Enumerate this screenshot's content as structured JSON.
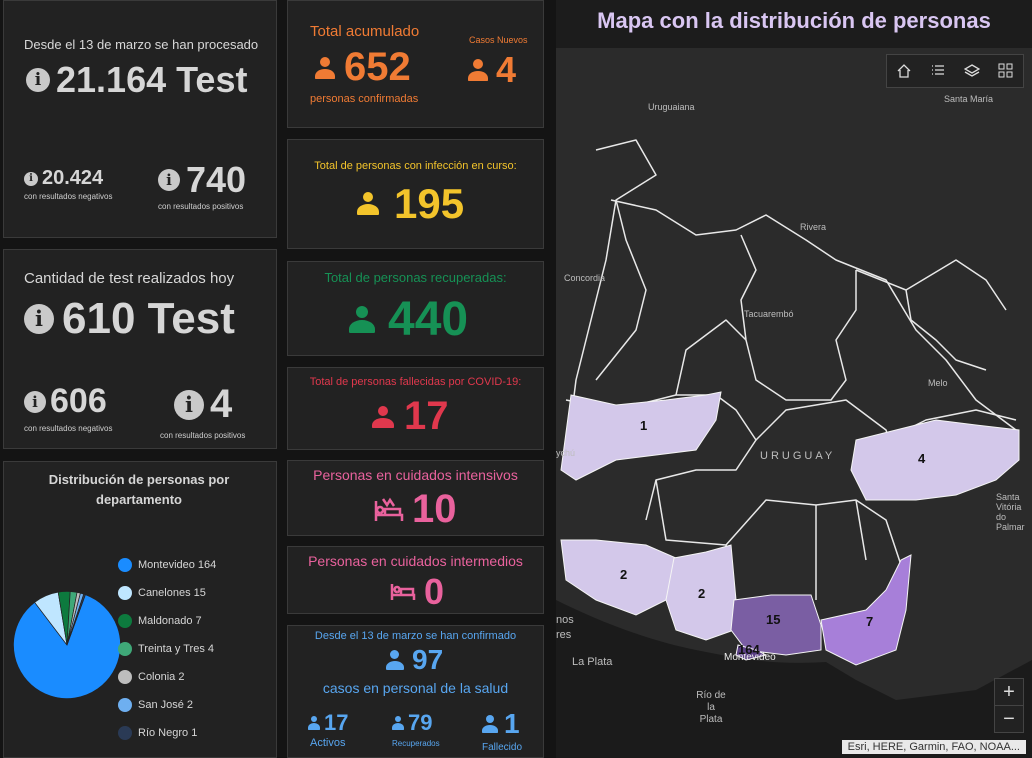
{
  "test_total": {
    "subtitle": "Desde el 13 de marzo se han procesado",
    "value": "21.164 Test",
    "negatives_value": "20.424",
    "negatives_label": "con resultados negativos",
    "positives_value": "740",
    "positives_label": "con resultados positivos"
  },
  "test_today": {
    "subtitle": "Cantidad de test realizados hoy",
    "value": "610 Test",
    "negatives_value": "606",
    "negatives_label": "con resultados negativos",
    "positives_value": "4",
    "positives_label": "con resultados positivos"
  },
  "confirmed": {
    "title": "Total acumulado",
    "value": "652",
    "caption": "personas confirmadas",
    "new_title": "Casos Nuevos",
    "new_value": "4",
    "color": "#f07b34"
  },
  "active": {
    "title": "Total de personas con infección en curso:",
    "value": "195",
    "color": "#f3c42b"
  },
  "recovered": {
    "title": "Total de personas recuperadas:",
    "value": "440",
    "color": "#169155"
  },
  "deceased": {
    "title": "Total de personas fallecidas por COVID-19:",
    "value": "17",
    "color": "#e0384d"
  },
  "icu": {
    "title": "Personas en cuidados intensivos",
    "value": "10",
    "color": "#e9629d"
  },
  "intermediate": {
    "title": "Personas en cuidados intermedios",
    "value": "0",
    "color": "#e9629d"
  },
  "health_staff": {
    "title": "Desde el 13 de marzo se han confirmado",
    "value": "97",
    "caption": "casos en personal de la salud",
    "active_value": "17",
    "active_label": "Activos",
    "recovered_value": "79",
    "recovered_label": "Recuperados",
    "deceased_value": "1",
    "deceased_label": "Fallecido",
    "color": "#58a6f0"
  },
  "chart_data": {
    "type": "pie",
    "title": "Distribución de personas por departamento",
    "categories": [
      "Montevideo",
      "Canelones",
      "Maldonado",
      "Treinta y Tres",
      "Colonia",
      "San José",
      "Río Negro"
    ],
    "values": [
      164,
      15,
      7,
      4,
      2,
      2,
      1
    ],
    "colors": [
      "#1a8cff",
      "#bfe6ff",
      "#0d7a3e",
      "#3fa878",
      "#bdbdbd",
      "#6eaff0",
      "#2a3a55"
    ],
    "legend_position": "right"
  },
  "map": {
    "title": "Mapa con la distribución de personas",
    "places": [
      "Uruguaiana",
      "Santa María",
      "Rivera",
      "Concordia",
      "Tacuarembó",
      "Melo",
      "URUGUAY",
      "La Plata",
      "Montevideo",
      "Río de la Plata",
      "Santa Vitória do Palmar",
      "nos",
      "res",
      "ychú"
    ],
    "region_values": [
      "1",
      "4",
      "2",
      "2",
      "15",
      "7",
      "164"
    ],
    "zoom_in": "+",
    "zoom_out": "−",
    "attribution": "Esri, HERE, Garmin, FAO, NOAA..."
  }
}
